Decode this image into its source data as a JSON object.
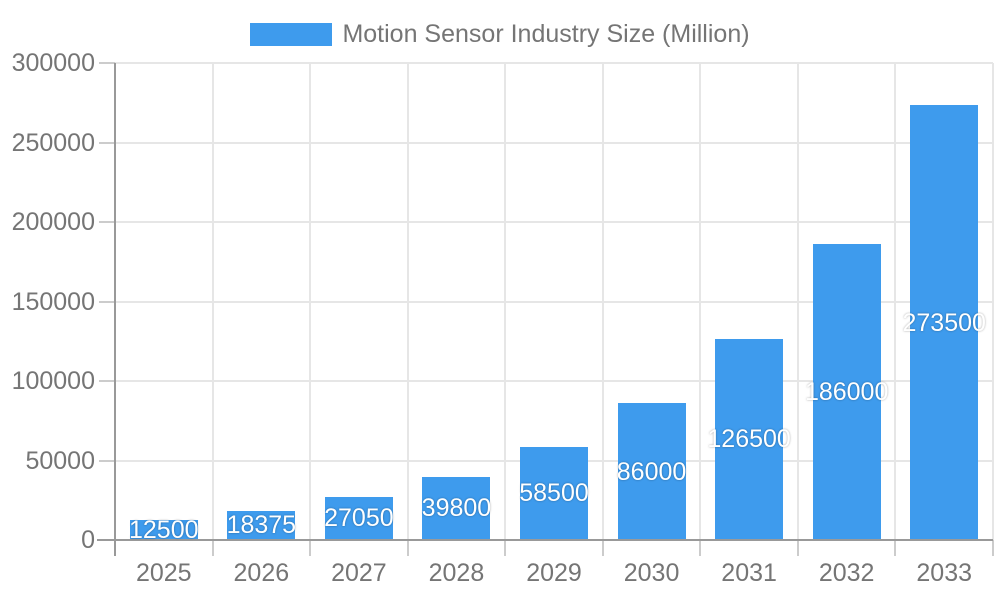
{
  "chart_data": {
    "type": "bar",
    "title": "",
    "legend": {
      "label": "Motion Sensor Industry Size (Million)",
      "position": "top-center"
    },
    "categories": [
      "2025",
      "2026",
      "2027",
      "2028",
      "2029",
      "2030",
      "2031",
      "2032",
      "2033"
    ],
    "series": [
      {
        "name": "Motion Sensor Industry Size (Million)",
        "values": [
          12500,
          18375,
          27050,
          39800,
          58500,
          86000,
          126500,
          186000,
          273500
        ]
      }
    ],
    "value_labels": [
      "12500",
      "18375",
      "27050",
      "39800",
      "58500",
      "86000",
      "126500",
      "186000",
      "273500"
    ],
    "xlabel": "",
    "ylabel": "",
    "ylim": [
      0,
      300000
    ],
    "yticks": [
      0,
      50000,
      100000,
      150000,
      200000,
      250000,
      300000
    ],
    "ytick_labels": [
      "0",
      "50000",
      "100000",
      "150000",
      "200000",
      "250000",
      "300000"
    ],
    "grid": true,
    "legend_position": "top",
    "colors": {
      "bar": "#3E9BED",
      "value_label_text": "#FFFFFF",
      "axis_text": "#757575",
      "gridline": "#E6E6E6",
      "tick": "#CCCCCC",
      "axis_line": "#999999",
      "background": "#FFFFFF"
    }
  }
}
